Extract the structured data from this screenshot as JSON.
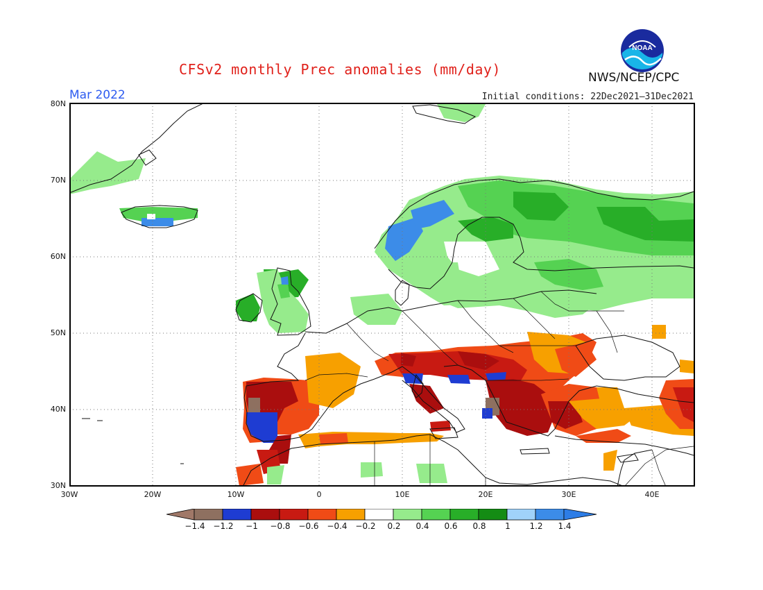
{
  "header": {
    "title": "CFSv2 monthly Prec anomalies (mm/day)",
    "month": "Mar 2022",
    "initial_conditions": "Initial conditions: 22Dec2021–31Dec2021",
    "org": "NWS/NCEP/CPC",
    "logo_text": "NOAA"
  },
  "map": {
    "lon_range": [
      -30,
      45
    ],
    "lat_range": [
      30,
      80
    ],
    "grid": true,
    "lat_labels": [
      "80N",
      "70N",
      "60N",
      "50N",
      "40N",
      "30N"
    ],
    "lon_labels": [
      "30W",
      "20W",
      "10W",
      "0",
      "10E",
      "20E",
      "30E",
      "40E"
    ]
  },
  "colorbar": {
    "labels": [
      "−1.4",
      "−1.2",
      "−1",
      "−0.8",
      "−0.6",
      "−0.4",
      "−0.2",
      "0.2",
      "0.4",
      "0.6",
      "0.8",
      "1",
      "1.2",
      "1.4"
    ],
    "colors": [
      "#a07868",
      "#8e7060",
      "#1e3cd2",
      "#aa0e0e",
      "#c81a12",
      "#f04b16",
      "#f7a000",
      "#ffffff",
      "#96eb8c",
      "#55d252",
      "#28ae28",
      "#148c14",
      "#a0d2fa",
      "#3c8ce8",
      "#2d7de6"
    ]
  },
  "legend_colors": {
    "under": "#a07868",
    "m14_m12": "#8e7060",
    "m12_m1": "#1e3cd2",
    "m1_m08": "#aa0e0e",
    "m08_m06": "#c81a12",
    "m06_m04": "#f04b16",
    "m04_m02": "#f7a000",
    "m02_02": "#ffffff",
    "p02_04": "#96eb8c",
    "p04_06": "#55d252",
    "p06_08": "#28ae28",
    "p08_1": "#148c14",
    "p1_12": "#a0d2fa",
    "p12_14": "#3c8ce8",
    "over": "#2d7de6"
  },
  "anomaly_regions": [
    {
      "name": "svalbard",
      "anomaly": "0.2 to 0.4"
    },
    {
      "name": "greenland-east",
      "anomaly": "0.2 to 0.4"
    },
    {
      "name": "iceland",
      "anomaly": "0.4 to 1.4"
    },
    {
      "name": "norway-coast",
      "anomaly": "1 to 1.4"
    },
    {
      "name": "scandinavia-finland-russia",
      "anomaly": "0.2 to 1"
    },
    {
      "name": "british-isles",
      "anomaly": "0.2 to 1.4"
    },
    {
      "name": "central-europe-north",
      "anomaly": "0.2 to 0.4"
    },
    {
      "name": "iberia",
      "anomaly": "-1.4 to -0.4"
    },
    {
      "name": "france-south",
      "anomaly": "-0.4 to -0.2"
    },
    {
      "name": "italy-balkans",
      "anomaly": "-1.2 to -0.4"
    },
    {
      "name": "greece-turkey",
      "anomaly": "-1 to -0.2"
    },
    {
      "name": "north-africa",
      "anomaly": "-1 to -0.2"
    },
    {
      "name": "libya",
      "anomaly": "0.2 to 0.4"
    }
  ]
}
